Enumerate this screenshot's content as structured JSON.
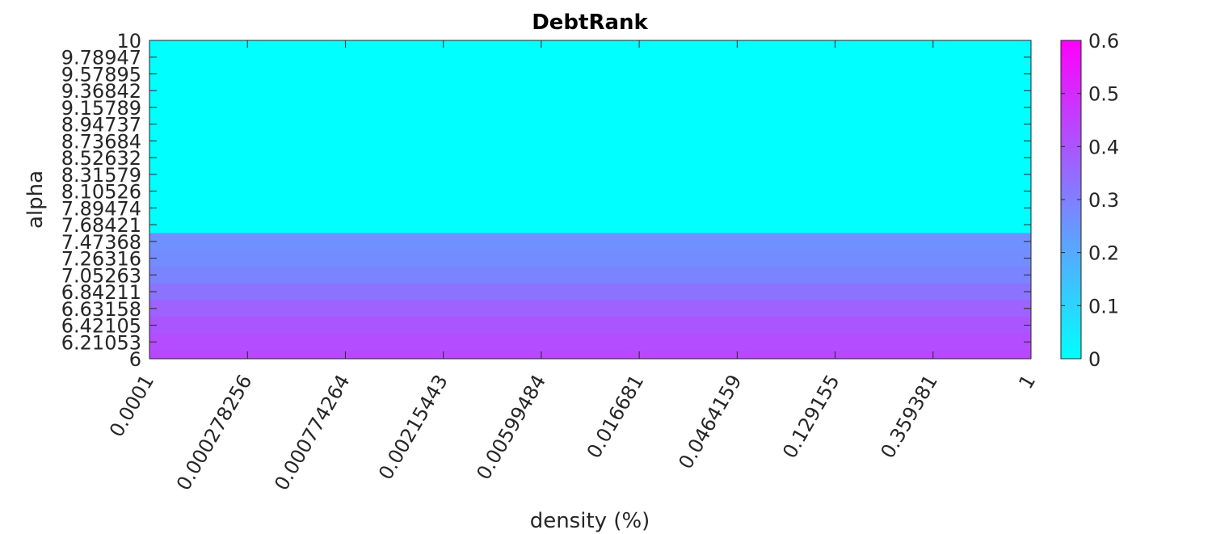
{
  "chart_data": {
    "type": "heatmap",
    "title": "DebtRank",
    "xlabel": "density (%)",
    "ylabel": "alpha",
    "x_scale": "log",
    "x_ticks": [
      "0.0001",
      "0.000278256",
      "0.000774264",
      "0.00215443",
      "0.00599484",
      "0.016681",
      "0.0464159",
      "0.129155",
      "0.359381",
      "1"
    ],
    "y_ticks": [
      "10",
      "9.78947",
      "9.57895",
      "9.36842",
      "9.15789",
      "8.94737",
      "8.73684",
      "8.52632",
      "8.31579",
      "8.10526",
      "7.89474",
      "7.68421",
      "7.47368",
      "7.26316",
      "7.05263",
      "6.84211",
      "6.63158",
      "6.42105",
      "6.21053",
      "6"
    ],
    "xlim": [
      0.0001,
      1
    ],
    "ylim": [
      6,
      10
    ],
    "rows": [
      {
        "alpha": 10,
        "value": 0
      },
      {
        "alpha": 9.78947,
        "value": 0
      },
      {
        "alpha": 9.57895,
        "value": 0
      },
      {
        "alpha": 9.36842,
        "value": 0
      },
      {
        "alpha": 9.15789,
        "value": 0
      },
      {
        "alpha": 8.94737,
        "value": 0
      },
      {
        "alpha": 8.73684,
        "value": 0
      },
      {
        "alpha": 8.52632,
        "value": 0
      },
      {
        "alpha": 8.31579,
        "value": 0
      },
      {
        "alpha": 8.10526,
        "value": 0
      },
      {
        "alpha": 7.89474,
        "value": 0
      },
      {
        "alpha": 7.68421,
        "value": 0
      },
      {
        "alpha": 7.47368,
        "value": 0.26
      },
      {
        "alpha": 7.26316,
        "value": 0.27
      },
      {
        "alpha": 7.05263,
        "value": 0.29
      },
      {
        "alpha": 6.84211,
        "value": 0.33
      },
      {
        "alpha": 6.63158,
        "value": 0.37
      },
      {
        "alpha": 6.42105,
        "value": 0.4
      },
      {
        "alpha": 6.21053,
        "value": 0.42
      },
      {
        "alpha": 6,
        "value": 0.43
      }
    ],
    "colorbar": {
      "colormap": "cool",
      "min": 0,
      "max": 0.6,
      "ticks": [
        "0",
        "0.1",
        "0.2",
        "0.3",
        "0.4",
        "0.5",
        "0.6"
      ],
      "color_low": "#00ffff",
      "color_high": "#ff00ff"
    },
    "grid": false,
    "legend": "none"
  }
}
